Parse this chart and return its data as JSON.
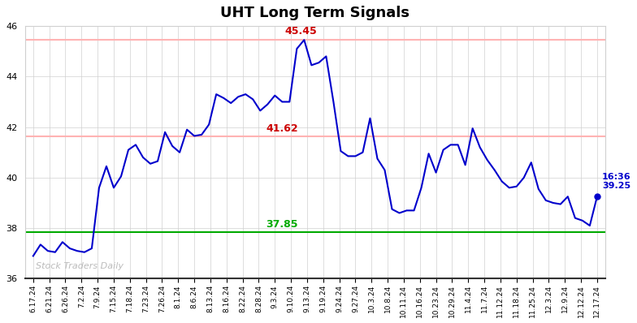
{
  "title": "UHT Long Term Signals",
  "x_labels": [
    "6.17.24",
    "6.21.24",
    "6.26.24",
    "7.2.24",
    "7.9.24",
    "7.15.24",
    "7.18.24",
    "7.23.24",
    "7.26.24",
    "8.1.24",
    "8.6.24",
    "8.13.24",
    "8.16.24",
    "8.22.24",
    "8.28.24",
    "9.3.24",
    "9.10.24",
    "9.13.24",
    "9.19.24",
    "9.24.24",
    "9.27.24",
    "10.3.24",
    "10.8.24",
    "10.11.24",
    "10.16.24",
    "10.23.24",
    "10.29.24",
    "11.4.24",
    "11.7.24",
    "11.12.24",
    "11.18.24",
    "11.25.24",
    "12.3.24",
    "12.9.24",
    "12.12.24",
    "12.17.24"
  ],
  "y_values": [
    36.9,
    37.35,
    37.1,
    37.05,
    37.45,
    37.2,
    37.1,
    37.05,
    37.2,
    39.6,
    40.45,
    39.6,
    40.05,
    41.1,
    41.3,
    40.8,
    40.55,
    40.65,
    41.8,
    41.25,
    41.0,
    41.9,
    41.65,
    41.7,
    42.1,
    43.3,
    43.15,
    42.95,
    43.2,
    43.3,
    43.1,
    42.65,
    42.9,
    43.25,
    43.0,
    43.0,
    45.1,
    45.45,
    44.45,
    44.55,
    44.8,
    43.0,
    41.05,
    40.85,
    40.85,
    41.0,
    42.35,
    40.75,
    40.3,
    38.75,
    38.6,
    38.7,
    38.7,
    39.6,
    40.95,
    40.2,
    41.1,
    41.3,
    41.3,
    40.5,
    41.95,
    41.2,
    40.7,
    40.3,
    39.85,
    39.6,
    39.65,
    40.0,
    40.6,
    39.55,
    39.1,
    39.0,
    38.95,
    39.25,
    38.4,
    38.3,
    38.1,
    39.25
  ],
  "hline_green": 37.85,
  "hline_red1": 41.62,
  "hline_red2": 45.45,
  "hline_red1_label": "41.62",
  "hline_red2_label": "45.45",
  "hline_green_label": "37.85",
  "last_label_time": "16:36",
  "last_label_value": "39.25",
  "watermark": "Stock Traders Daily",
  "line_color": "#0000cc",
  "green_color": "#00aa00",
  "red_color": "#cc0000",
  "red_line_color": "#ffb3b3",
  "ylim_min": 36,
  "ylim_max": 46,
  "yticks": [
    36,
    38,
    40,
    42,
    44,
    46
  ],
  "background_color": "#ffffff",
  "grid_color": "#d0d0d0"
}
